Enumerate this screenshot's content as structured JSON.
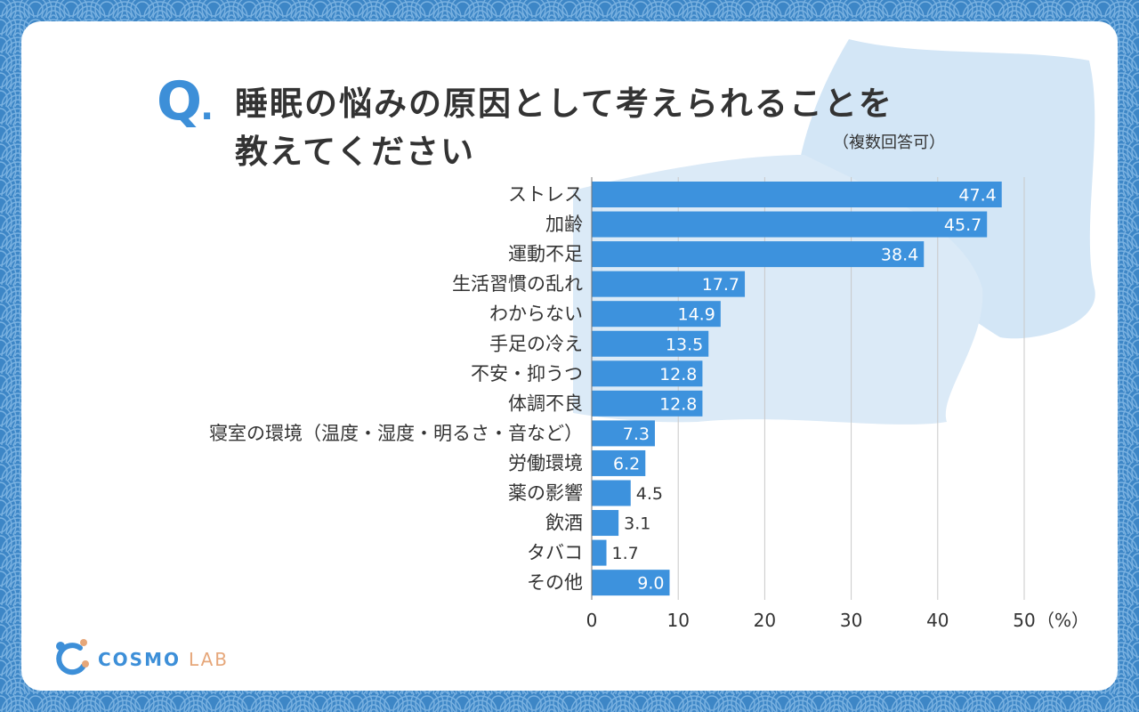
{
  "title": {
    "q_mark": "Q",
    "q_dot": ".",
    "line1": "睡眠の悩みの原因として考えられることを",
    "line2": "教えてください",
    "note": "（複数回答可）"
  },
  "chart_data": {
    "type": "bar",
    "orientation": "horizontal",
    "categories": [
      "ストレス",
      "加齢",
      "運動不足",
      "生活習慣の乱れ",
      "わからない",
      "手足の冷え",
      "不安・抑うつ",
      "体調不良",
      "寝室の環境（温度・湿度・明るさ・音など）",
      "労働環境",
      "薬の影響",
      "飲酒",
      "タバコ",
      "その他"
    ],
    "values": [
      47.4,
      45.7,
      38.4,
      17.7,
      14.9,
      13.5,
      12.8,
      12.8,
      7.3,
      6.2,
      4.5,
      3.1,
      1.7,
      9.0
    ],
    "value_labels": [
      "47.4",
      "45.7",
      "38.4",
      "17.7",
      "14.9",
      "13.5",
      "12.8",
      "12.8",
      "7.3",
      "6.2",
      "4.5",
      "3.1",
      "1.7",
      "9.0"
    ],
    "xlim": [
      0,
      50
    ],
    "x_ticks": [
      0,
      10,
      20,
      30,
      40,
      50
    ],
    "x_tick_labels": [
      "0",
      "10",
      "20",
      "30",
      "40",
      "50"
    ],
    "x_unit": "（%）",
    "bar_color": "#3d92dd",
    "grid": true
  },
  "logo": {
    "main": "COSMO",
    "sub": "LAB"
  },
  "colors": {
    "background": "#3d86c6",
    "accent": "#3d8fd8",
    "bar": "#3d92dd",
    "logo_sub": "#e6a77a"
  }
}
